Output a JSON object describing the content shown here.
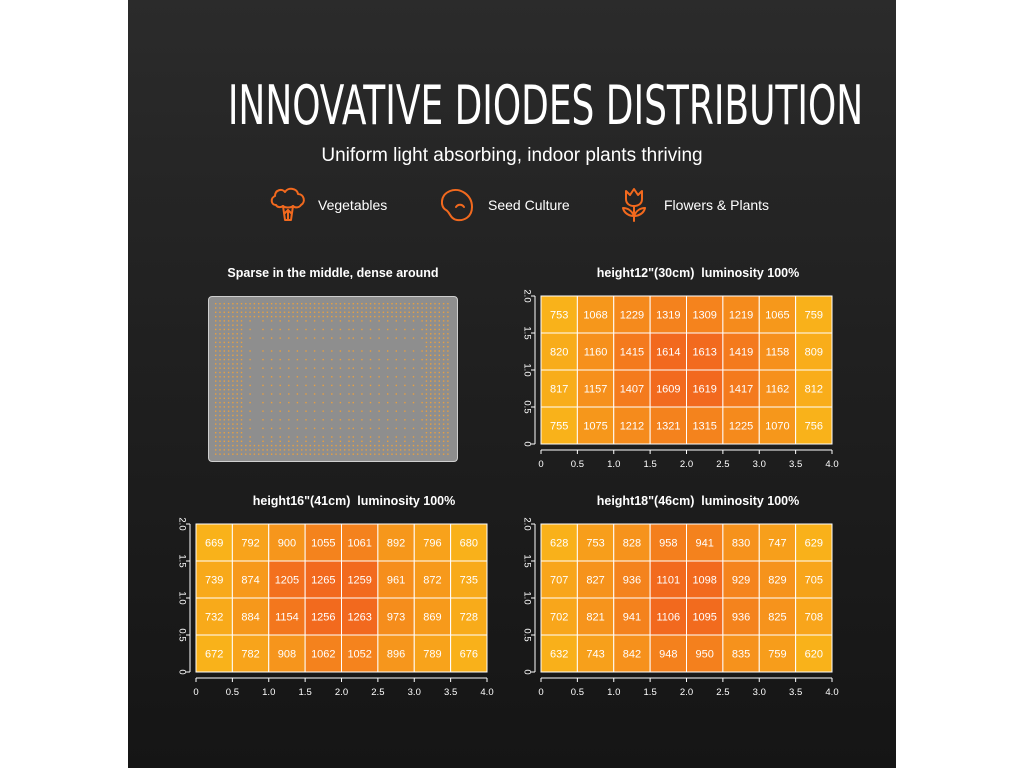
{
  "header": {
    "title": "INNOVATIVE DIODES DISTRIBUTION",
    "subtitle": "Uniform light absorbing, indoor plants thriving"
  },
  "features": [
    {
      "label": "Vegetables",
      "icon": "broccoli-icon"
    },
    {
      "label": "Seed Culture",
      "icon": "bean-icon"
    },
    {
      "label": "Flowers & Plants",
      "icon": "tulip-icon"
    }
  ],
  "colors": {
    "accent": "#f2691e",
    "background": "#1e1e1e",
    "heat_low": "#f9b21a",
    "heat_high": "#f2691e"
  },
  "diode_panel": {
    "title": "Sparse in the middle, dense around",
    "led_color": "#e8a040"
  },
  "chart_data": [
    {
      "type": "heatmap",
      "title": "height12\"(30cm)  luminosity 100%",
      "xlim": [
        0,
        4.0
      ],
      "ylim": [
        0,
        2.0
      ],
      "xticks": [
        "0",
        "0.5",
        "1.0",
        "1.5",
        "2.0",
        "2.5",
        "3.0",
        "3.5",
        "4.0"
      ],
      "yticks": [
        "0",
        "0.5",
        "1.0",
        "1.5",
        "2.0"
      ],
      "values": [
        [
          753,
          1068,
          1229,
          1319,
          1309,
          1219,
          1065,
          759
        ],
        [
          820,
          1160,
          1415,
          1614,
          1613,
          1419,
          1158,
          809
        ],
        [
          817,
          1157,
          1407,
          1609,
          1619,
          1417,
          1162,
          812
        ],
        [
          755,
          1075,
          1212,
          1321,
          1315,
          1225,
          1070,
          756
        ]
      ]
    },
    {
      "type": "heatmap",
      "title": "height16\"(41cm)  luminosity 100%",
      "xlim": [
        0,
        4.0
      ],
      "ylim": [
        0,
        2.0
      ],
      "xticks": [
        "0",
        "0.5",
        "1.0",
        "1.5",
        "2.0",
        "2.5",
        "3.0",
        "3.5",
        "4.0"
      ],
      "yticks": [
        "0",
        "0.5",
        "1.0",
        "1.5",
        "2.0"
      ],
      "values": [
        [
          669,
          792,
          900,
          1055,
          1061,
          892,
          796,
          680
        ],
        [
          739,
          874,
          1205,
          1265,
          1259,
          961,
          872,
          735
        ],
        [
          732,
          884,
          1154,
          1256,
          1263,
          973,
          869,
          728
        ],
        [
          672,
          782,
          908,
          1062,
          1052,
          896,
          789,
          676
        ]
      ]
    },
    {
      "type": "heatmap",
      "title": "height18\"(46cm)  luminosity 100%",
      "xlim": [
        0,
        4.0
      ],
      "ylim": [
        0,
        2.0
      ],
      "xticks": [
        "0",
        "0.5",
        "1.0",
        "1.5",
        "2.0",
        "2.5",
        "3.0",
        "3.5",
        "4.0"
      ],
      "yticks": [
        "0",
        "0.5",
        "1.0",
        "1.5",
        "2.0"
      ],
      "values": [
        [
          628,
          753,
          828,
          958,
          941,
          830,
          747,
          629
        ],
        [
          707,
          827,
          936,
          1101,
          1098,
          929,
          829,
          705
        ],
        [
          702,
          821,
          941,
          1106,
          1095,
          936,
          825,
          708
        ],
        [
          632,
          743,
          842,
          948,
          950,
          835,
          759,
          620
        ]
      ]
    }
  ]
}
